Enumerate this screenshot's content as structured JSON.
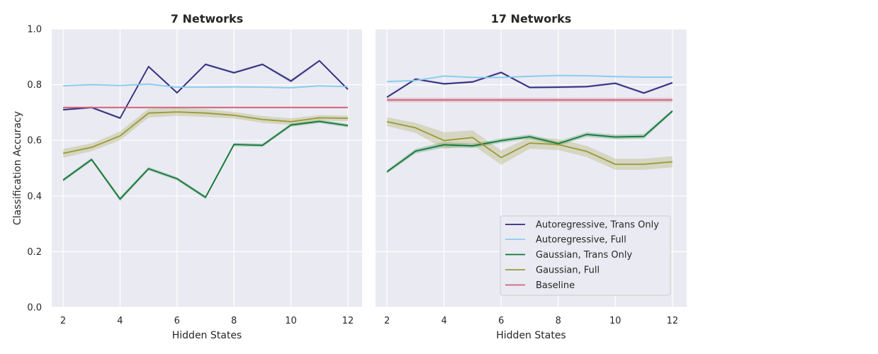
{
  "chart_data": [
    {
      "type": "line",
      "title": "7 Networks",
      "xlabel": "Hidden States",
      "ylabel": "Classification Accuracy",
      "x": [
        2,
        3,
        4,
        5,
        6,
        7,
        8,
        9,
        10,
        11,
        12
      ],
      "xlim": [
        1.6,
        12.5
      ],
      "ylim": [
        0.0,
        1.0
      ],
      "xticks": [
        "2",
        "4",
        "6",
        "8",
        "10",
        "12"
      ],
      "yticks": [
        "0.0",
        "0.2",
        "0.4",
        "0.6",
        "0.8",
        "1.0"
      ],
      "grid": true,
      "series": [
        {
          "name": "Autoregressive, Trans Only",
          "color": "#2e2a7e",
          "values": [
            0.71,
            0.718,
            0.68,
            0.865,
            0.771,
            0.873,
            0.843,
            0.873,
            0.813,
            0.886,
            0.783
          ],
          "band": [
            0.004,
            0.004,
            0.004,
            0.004,
            0.004,
            0.004,
            0.004,
            0.004,
            0.006,
            0.004,
            0.004
          ]
        },
        {
          "name": "Autoregressive, Full",
          "color": "#88ccee",
          "values": [
            0.796,
            0.8,
            0.797,
            0.802,
            0.791,
            0.791,
            0.792,
            0.791,
            0.789,
            0.796,
            0.793
          ],
          "band": [
            0.003,
            0.003,
            0.003,
            0.003,
            0.003,
            0.003,
            0.003,
            0.003,
            0.003,
            0.003,
            0.003
          ]
        },
        {
          "name": "Gaussian, Trans Only",
          "color": "#117733",
          "values": [
            0.457,
            0.531,
            0.389,
            0.498,
            0.462,
            0.395,
            0.585,
            0.582,
            0.655,
            0.668,
            0.653
          ],
          "band": [
            0.006,
            0.006,
            0.008,
            0.006,
            0.006,
            0.006,
            0.006,
            0.006,
            0.006,
            0.006,
            0.006
          ]
        },
        {
          "name": "Gaussian, Full",
          "color": "#999933",
          "values": [
            0.553,
            0.575,
            0.616,
            0.698,
            0.702,
            0.698,
            0.69,
            0.675,
            0.667,
            0.681,
            0.679
          ],
          "band": [
            0.016,
            0.014,
            0.016,
            0.016,
            0.014,
            0.014,
            0.012,
            0.012,
            0.012,
            0.01,
            0.01
          ]
        },
        {
          "name": "Baseline",
          "color": "#cc6677",
          "values": [
            0.718,
            0.718,
            0.718,
            0.718,
            0.718,
            0.718,
            0.718,
            0.718,
            0.718,
            0.718,
            0.718
          ],
          "band": [
            0.003,
            0.003,
            0.003,
            0.003,
            0.003,
            0.003,
            0.003,
            0.003,
            0.003,
            0.003,
            0.003
          ]
        }
      ]
    },
    {
      "type": "line",
      "title": "17 Networks",
      "xlabel": "Hidden States",
      "ylabel": "",
      "x": [
        2,
        3,
        4,
        5,
        6,
        7,
        8,
        9,
        10,
        11,
        12
      ],
      "xlim": [
        1.6,
        12.5
      ],
      "ylim": [
        0.0,
        1.0
      ],
      "xticks": [
        "2",
        "4",
        "6",
        "8",
        "10",
        "12"
      ],
      "yticks": [],
      "grid": true,
      "legend": "lower right",
      "series": [
        {
          "name": "Autoregressive, Trans Only",
          "color": "#2e2a7e",
          "values": [
            0.755,
            0.82,
            0.803,
            0.81,
            0.844,
            0.79,
            0.791,
            0.793,
            0.805,
            0.77,
            0.807
          ],
          "band": [
            0.004,
            0.004,
            0.004,
            0.004,
            0.004,
            0.004,
            0.004,
            0.004,
            0.004,
            0.004,
            0.004
          ]
        },
        {
          "name": "Autoregressive, Full",
          "color": "#88ccee",
          "values": [
            0.811,
            0.815,
            0.831,
            0.826,
            0.826,
            0.83,
            0.833,
            0.832,
            0.829,
            0.827,
            0.827
          ],
          "band": [
            0.003,
            0.003,
            0.003,
            0.003,
            0.003,
            0.003,
            0.003,
            0.003,
            0.003,
            0.003,
            0.003
          ]
        },
        {
          "name": "Gaussian, Trans Only",
          "color": "#117733",
          "values": [
            0.487,
            0.561,
            0.584,
            0.58,
            0.599,
            0.613,
            0.588,
            0.621,
            0.612,
            0.614,
            0.705
          ],
          "band": [
            0.006,
            0.008,
            0.01,
            0.008,
            0.008,
            0.008,
            0.008,
            0.008,
            0.008,
            0.008,
            0.006
          ]
        },
        {
          "name": "Gaussian, Full",
          "color": "#999933",
          "values": [
            0.667,
            0.645,
            0.599,
            0.61,
            0.538,
            0.59,
            0.585,
            0.56,
            0.514,
            0.514,
            0.523
          ],
          "band": [
            0.016,
            0.018,
            0.03,
            0.026,
            0.026,
            0.02,
            0.02,
            0.02,
            0.02,
            0.02,
            0.02
          ]
        },
        {
          "name": "Baseline",
          "color": "#cc6677",
          "values": [
            0.745,
            0.745,
            0.745,
            0.745,
            0.745,
            0.745,
            0.745,
            0.745,
            0.745,
            0.745,
            0.745
          ],
          "band": [
            0.008,
            0.008,
            0.008,
            0.008,
            0.008,
            0.008,
            0.008,
            0.008,
            0.008,
            0.008,
            0.008
          ]
        }
      ]
    }
  ]
}
